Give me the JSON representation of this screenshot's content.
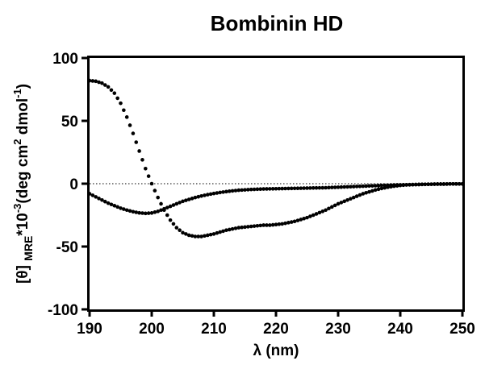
{
  "chart_data": {
    "type": "scatter",
    "title": "Bombinin HD",
    "xlabel": "λ (nm)",
    "ylabel_parts": {
      "a": "[θ] ",
      "sub": "MRE",
      "b": "*10",
      "sup1": "-3",
      "c": "(deg cm",
      "sup2": "2",
      "d": " dmol",
      "sup3": "-1",
      "e": ")"
    },
    "xlim": [
      190,
      250
    ],
    "ylim": [
      -100,
      100
    ],
    "x_ticks": [
      "190",
      "200",
      "210",
      "220",
      "230",
      "240",
      "250"
    ],
    "y_ticks": [
      "100",
      "50",
      "0",
      "-50",
      "-100"
    ],
    "zero_line": "dotted",
    "grid": false,
    "series": [
      {
        "points": [
          [
            190,
            82
          ],
          [
            191,
            81.5
          ],
          [
            192,
            80
          ],
          [
            193,
            77
          ],
          [
            194,
            72
          ],
          [
            195,
            64
          ],
          [
            196,
            53
          ],
          [
            197,
            40
          ],
          [
            198,
            26
          ],
          [
            199,
            12
          ],
          [
            200,
            0
          ],
          [
            201,
            -11
          ],
          [
            202,
            -21
          ],
          [
            203,
            -29
          ],
          [
            204,
            -35
          ],
          [
            205,
            -39
          ],
          [
            206,
            -41
          ],
          [
            207,
            -42
          ],
          [
            208,
            -42
          ],
          [
            209,
            -41
          ],
          [
            210,
            -40
          ],
          [
            211,
            -38.5
          ],
          [
            212,
            -37
          ],
          [
            213,
            -36
          ],
          [
            214,
            -35
          ],
          [
            215,
            -34.5
          ],
          [
            216,
            -34
          ],
          [
            217,
            -33.5
          ],
          [
            218,
            -33
          ],
          [
            219,
            -33
          ],
          [
            220,
            -32.5
          ],
          [
            221,
            -32
          ],
          [
            222,
            -31
          ],
          [
            223,
            -30
          ],
          [
            224,
            -28.5
          ],
          [
            225,
            -27
          ],
          [
            226,
            -25
          ],
          [
            227,
            -23
          ],
          [
            228,
            -21
          ],
          [
            229,
            -18.5
          ],
          [
            230,
            -16
          ],
          [
            231,
            -14
          ],
          [
            232,
            -12
          ],
          [
            233,
            -10
          ],
          [
            234,
            -8
          ],
          [
            235,
            -6.5
          ],
          [
            236,
            -5
          ],
          [
            237,
            -3.8
          ],
          [
            238,
            -2.8
          ],
          [
            239,
            -2
          ],
          [
            240,
            -1.4
          ],
          [
            241,
            -1
          ],
          [
            242,
            -0.8
          ],
          [
            243,
            -0.6
          ],
          [
            244,
            -0.5
          ],
          [
            245,
            -0.4
          ],
          [
            246,
            -0.3
          ],
          [
            247,
            -0.3
          ],
          [
            248,
            -0.2
          ],
          [
            249,
            -0.2
          ],
          [
            250,
            -0.2
          ]
        ]
      },
      {
        "points": [
          [
            190,
            -8
          ],
          [
            191,
            -10.5
          ],
          [
            192,
            -13
          ],
          [
            193,
            -15.5
          ],
          [
            194,
            -17.5
          ],
          [
            195,
            -19.5
          ],
          [
            196,
            -21
          ],
          [
            197,
            -22.3
          ],
          [
            198,
            -23.2
          ],
          [
            199,
            -23.6
          ],
          [
            200,
            -23.3
          ],
          [
            201,
            -22
          ],
          [
            202,
            -20
          ],
          [
            203,
            -18
          ],
          [
            204,
            -16
          ],
          [
            205,
            -14
          ],
          [
            206,
            -12.5
          ],
          [
            207,
            -11
          ],
          [
            208,
            -9.8
          ],
          [
            209,
            -8.7
          ],
          [
            210,
            -7.8
          ],
          [
            211,
            -7
          ],
          [
            212,
            -6.3
          ],
          [
            213,
            -5.7
          ],
          [
            214,
            -5.2
          ],
          [
            215,
            -4.9
          ],
          [
            216,
            -4.6
          ],
          [
            217,
            -4.4
          ],
          [
            218,
            -4.2
          ],
          [
            219,
            -4.1
          ],
          [
            220,
            -4
          ],
          [
            221,
            -3.9
          ],
          [
            222,
            -3.8
          ],
          [
            223,
            -3.7
          ],
          [
            224,
            -3.6
          ],
          [
            225,
            -3.5
          ],
          [
            226,
            -3.4
          ],
          [
            227,
            -3.3
          ],
          [
            228,
            -3.2
          ],
          [
            229,
            -3
          ],
          [
            230,
            -2.8
          ],
          [
            231,
            -2.6
          ],
          [
            232,
            -2.4
          ],
          [
            233,
            -2.2
          ],
          [
            234,
            -2
          ],
          [
            235,
            -1.8
          ],
          [
            236,
            -1.6
          ],
          [
            237,
            -1.4
          ],
          [
            238,
            -1.2
          ],
          [
            239,
            -1
          ],
          [
            240,
            -0.9
          ],
          [
            241,
            -0.8
          ],
          [
            242,
            -0.7
          ],
          [
            243,
            -0.6
          ],
          [
            244,
            -0.5
          ],
          [
            245,
            -0.4
          ],
          [
            246,
            -0.3
          ],
          [
            247,
            -0.3
          ],
          [
            248,
            -0.2
          ],
          [
            249,
            -0.2
          ],
          [
            250,
            -0.2
          ]
        ]
      }
    ]
  }
}
